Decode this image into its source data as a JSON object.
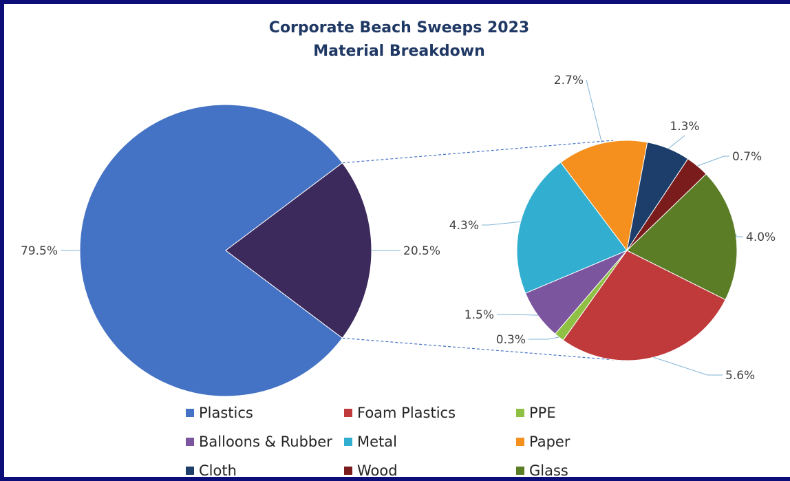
{
  "chart_data": {
    "type": "pie",
    "title_line1": "Corporate Beach Sweeps 2023",
    "title_line2": "Material Breakdown",
    "main_pie": {
      "slices": [
        {
          "label": "Plastics",
          "value": 79.5,
          "display": "79.5%",
          "color": "#4472c4"
        },
        {
          "label": "",
          "value": 20.5,
          "display": "20.5%",
          "color": "#3d2a5c"
        }
      ]
    },
    "sub_pie": {
      "slices": [
        {
          "label": "Glass",
          "value": 4.0,
          "display": "4.0%",
          "color": "#5a7d26"
        },
        {
          "label": "Foam Plastics",
          "value": 5.6,
          "display": "5.6%",
          "color": "#c0393b"
        },
        {
          "label": "PPE",
          "value": 0.3,
          "display": "0.3%",
          "color": "#8fc044"
        },
        {
          "label": "Balloons & Rubber",
          "value": 1.5,
          "display": "1.5%",
          "color": "#7b559e"
        },
        {
          "label": "Metal",
          "value": 4.3,
          "display": "4.3%",
          "color": "#31aed0"
        },
        {
          "label": "Paper",
          "value": 2.7,
          "display": "2.7%",
          "color": "#f5901f"
        },
        {
          "label": "Cloth",
          "value": 1.3,
          "display": "1.3%",
          "color": "#1d3d6b"
        },
        {
          "label": "Wood",
          "value": 0.7,
          "display": "0.7%",
          "color": "#7a1c1c"
        }
      ]
    },
    "legend": [
      {
        "label": "Plastics",
        "color": "#4472c4"
      },
      {
        "label": "Foam Plastics",
        "color": "#c0393b"
      },
      {
        "label": "PPE",
        "color": "#8fc044"
      },
      {
        "label": "Balloons & Rubber",
        "color": "#7b559e"
      },
      {
        "label": "Metal",
        "color": "#31aed0"
      },
      {
        "label": "Paper",
        "color": "#f5901f"
      },
      {
        "label": "Cloth",
        "color": "#1d3d6b"
      },
      {
        "label": "Wood",
        "color": "#7a1c1c"
      },
      {
        "label": "Glass",
        "color": "#5a7d26"
      }
    ]
  },
  "colors": {
    "title": "#1f3864",
    "border": "#0d0d7a",
    "leader": "#7fb3d5"
  }
}
